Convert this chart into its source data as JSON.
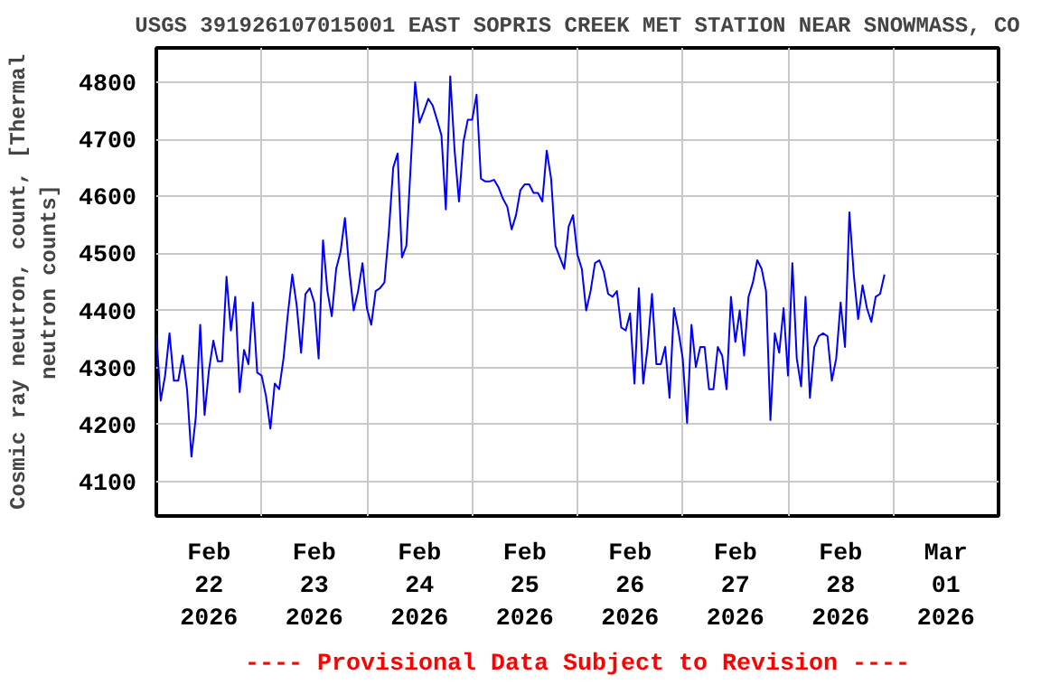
{
  "chart_data": {
    "type": "line",
    "title": "USGS 391926107015001 EAST SOPRIS CREEK MET STATION NEAR SNOWMASS, CO",
    "ylabel": "Cosmic ray neutron, count, [Thermal\nneutron counts]",
    "annotations": [
      "---- Provisional Data Subject to Revision ----"
    ],
    "xlim": [
      "2026-02-22T00:00",
      "2026-03-02T00:00"
    ],
    "xticks": [
      {
        "value": "2026-02-22T12:00",
        "label": "Feb\n22\n2026"
      },
      {
        "value": "2026-02-23T00:00",
        "label": null
      },
      {
        "value": "2026-02-23T12:00",
        "label": "Feb\n23\n2026"
      },
      {
        "value": "2026-02-24T00:00",
        "label": null
      },
      {
        "value": "2026-02-24T12:00",
        "label": "Feb\n24\n2026"
      },
      {
        "value": "2026-02-25T00:00",
        "label": null
      },
      {
        "value": "2026-02-25T12:00",
        "label": "Feb\n25\n2026"
      },
      {
        "value": "2026-02-26T00:00",
        "label": null
      },
      {
        "value": "2026-02-26T12:00",
        "label": "Feb\n26\n2026"
      },
      {
        "value": "2026-02-27T00:00",
        "label": null
      },
      {
        "value": "2026-02-27T12:00",
        "label": "Feb\n27\n2026"
      },
      {
        "value": "2026-02-28T00:00",
        "label": null
      },
      {
        "value": "2026-02-28T12:00",
        "label": "Feb\n28\n2026"
      },
      {
        "value": "2026-03-01T00:00",
        "label": null
      },
      {
        "value": "2026-03-01T12:00",
        "label": "Mar\n01\n2026"
      }
    ],
    "ylim": [
      4040,
      4860
    ],
    "yticks": [
      4100,
      4200,
      4300,
      4400,
      4500,
      4600,
      4700,
      4800
    ],
    "grid": true,
    "series": [
      {
        "color": "#0000ff",
        "x": [
          "2026-02-22T00:00",
          "2026-02-22T01:00",
          "2026-02-22T02:00",
          "2026-02-22T03:00",
          "2026-02-22T04:00",
          "2026-02-22T05:00",
          "2026-02-22T06:00",
          "2026-02-22T07:00",
          "2026-02-22T08:00",
          "2026-02-22T09:00",
          "2026-02-22T10:00",
          "2026-02-22T11:00",
          "2026-02-22T12:00",
          "2026-02-22T13:00",
          "2026-02-22T14:00",
          "2026-02-22T15:00",
          "2026-02-22T16:00",
          "2026-02-22T17:00",
          "2026-02-22T18:00",
          "2026-02-22T19:00",
          "2026-02-22T20:00",
          "2026-02-22T21:00",
          "2026-02-22T22:00",
          "2026-02-22T23:00",
          "2026-02-23T00:00",
          "2026-02-23T01:00",
          "2026-02-23T02:00",
          "2026-02-23T03:00",
          "2026-02-23T04:00",
          "2026-02-23T05:00",
          "2026-02-23T06:00",
          "2026-02-23T07:00",
          "2026-02-23T08:00",
          "2026-02-23T09:00",
          "2026-02-23T10:00",
          "2026-02-23T11:00",
          "2026-02-23T12:00",
          "2026-02-23T13:00",
          "2026-02-23T14:00",
          "2026-02-23T15:00",
          "2026-02-23T16:00",
          "2026-02-23T17:00",
          "2026-02-23T18:00",
          "2026-02-23T19:00",
          "2026-02-23T20:00",
          "2026-02-23T21:00",
          "2026-02-23T22:00",
          "2026-02-23T23:00",
          "2026-02-24T00:00",
          "2026-02-24T01:00",
          "2026-02-24T02:00",
          "2026-02-24T03:00",
          "2026-02-24T04:00",
          "2026-02-24T05:00",
          "2026-02-24T06:00",
          "2026-02-24T07:00",
          "2026-02-24T08:00",
          "2026-02-24T09:00",
          "2026-02-24T10:00",
          "2026-02-24T11:00",
          "2026-02-24T12:00",
          "2026-02-24T13:00",
          "2026-02-24T14:00",
          "2026-02-24T15:00",
          "2026-02-24T16:00",
          "2026-02-24T17:00",
          "2026-02-24T18:00",
          "2026-02-24T19:00",
          "2026-02-24T20:00",
          "2026-02-24T21:00",
          "2026-02-24T22:00",
          "2026-02-24T23:00",
          "2026-02-25T00:00",
          "2026-02-25T01:00",
          "2026-02-25T02:00",
          "2026-02-25T03:00",
          "2026-02-25T04:00",
          "2026-02-25T05:00",
          "2026-02-25T06:00",
          "2026-02-25T07:00",
          "2026-02-25T08:00",
          "2026-02-25T09:00",
          "2026-02-25T10:00",
          "2026-02-25T11:00",
          "2026-02-25T12:00",
          "2026-02-25T13:00",
          "2026-02-25T14:00",
          "2026-02-25T15:00",
          "2026-02-25T16:00",
          "2026-02-25T17:00",
          "2026-02-25T18:00",
          "2026-02-25T19:00",
          "2026-02-25T20:00",
          "2026-02-25T21:00",
          "2026-02-25T22:00",
          "2026-02-25T23:00",
          "2026-02-26T00:00",
          "2026-02-26T01:00",
          "2026-02-26T02:00",
          "2026-02-26T03:00",
          "2026-02-26T04:00",
          "2026-02-26T05:00",
          "2026-02-26T06:00",
          "2026-02-26T07:00",
          "2026-02-26T08:00",
          "2026-02-26T09:00",
          "2026-02-26T10:00",
          "2026-02-26T11:00",
          "2026-02-26T12:00",
          "2026-02-26T13:00",
          "2026-02-26T14:00",
          "2026-02-26T15:00",
          "2026-02-26T16:00",
          "2026-02-26T17:00",
          "2026-02-26T18:00",
          "2026-02-26T19:00",
          "2026-02-26T20:00",
          "2026-02-26T21:00",
          "2026-02-26T22:00",
          "2026-02-26T23:00",
          "2026-02-27T00:00",
          "2026-02-27T01:00",
          "2026-02-27T02:00",
          "2026-02-27T03:00",
          "2026-02-27T04:00",
          "2026-02-27T05:00",
          "2026-02-27T06:00",
          "2026-02-27T07:00",
          "2026-02-27T08:00",
          "2026-02-27T09:00",
          "2026-02-27T10:00",
          "2026-02-27T11:00",
          "2026-02-27T12:00",
          "2026-02-27T13:00",
          "2026-02-27T14:00",
          "2026-02-27T15:00",
          "2026-02-27T16:00",
          "2026-02-27T17:00",
          "2026-02-27T18:00",
          "2026-02-27T19:00",
          "2026-02-27T20:00",
          "2026-02-27T21:00",
          "2026-02-27T22:00",
          "2026-02-27T23:00",
          "2026-02-28T00:00",
          "2026-02-28T01:00",
          "2026-02-28T02:00",
          "2026-02-28T03:00",
          "2026-02-28T04:00",
          "2026-02-28T05:00",
          "2026-02-28T06:00",
          "2026-02-28T07:00",
          "2026-02-28T08:00",
          "2026-02-28T09:00",
          "2026-02-28T10:00",
          "2026-02-28T11:00",
          "2026-02-28T12:00",
          "2026-02-28T13:00",
          "2026-02-28T14:00",
          "2026-02-28T15:00",
          "2026-02-28T16:00",
          "2026-02-28T17:00",
          "2026-02-28T18:00",
          "2026-02-28T19:00",
          "2026-02-28T20:00",
          "2026-02-28T21:00",
          "2026-02-28T22:00"
        ],
        "values": [
          4358,
          4242,
          4286,
          4360,
          4277,
          4277,
          4321,
          4262,
          4144,
          4213,
          4375,
          4217,
          4296,
          4347,
          4311,
          4311,
          4459,
          4365,
          4424,
          4257,
          4331,
          4306,
          4414,
          4291,
          4286,
          4250,
          4193,
          4272,
          4262,
          4316,
          4395,
          4463,
          4409,
          4326,
          4429,
          4439,
          4414,
          4316,
          4523,
          4434,
          4390,
          4473,
          4503,
          4562,
          4470,
          4400,
          4434,
          4483,
          4404,
          4375,
          4434,
          4439,
          4449,
          4537,
          4650,
          4675,
          4493,
          4513,
          4655,
          4800,
          4729,
          4749,
          4771,
          4759,
          4734,
          4707,
          4577,
          4810,
          4680,
          4591,
          4695,
          4734,
          4734,
          4778,
          4631,
          4626,
          4626,
          4629,
          4616,
          4596,
          4582,
          4542,
          4567,
          4611,
          4621,
          4621,
          4606,
          4606,
          4591,
          4680,
          4631,
          4513,
          4493,
          4473,
          4547,
          4567,
          4498,
          4473,
          4400,
          4434,
          4483,
          4488,
          4468,
          4429,
          4424,
          4434,
          4370,
          4365,
          4395,
          4272,
          4439,
          4272,
          4336,
          4429,
          4306,
          4306,
          4336,
          4247,
          4404,
          4365,
          4316,
          4203,
          4375,
          4301,
          4336,
          4336,
          4262,
          4262,
          4336,
          4321,
          4262,
          4424,
          4345,
          4400,
          4321,
          4424,
          4449,
          4488,
          4473,
          4434,
          4208,
          4360,
          4326,
          4404,
          4286,
          4483,
          4316,
          4267,
          4424,
          4247,
          4336,
          4355,
          4360,
          4355,
          4277,
          4316,
          4414,
          4336,
          4572,
          4463,
          4385,
          4444,
          4404,
          4380,
          4424,
          4429,
          4463
        ]
      }
    ]
  }
}
